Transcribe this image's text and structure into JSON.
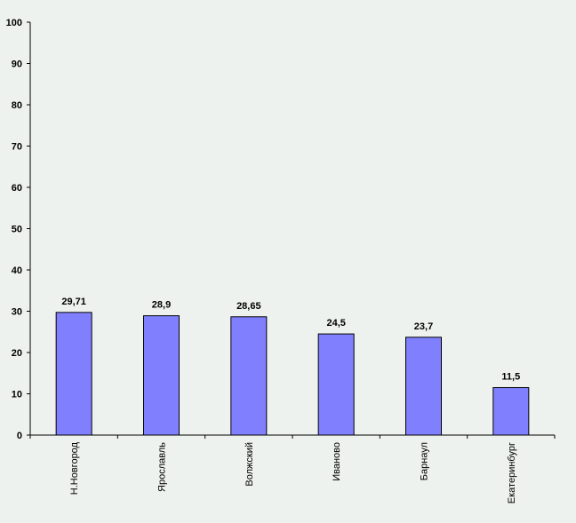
{
  "chart_data": {
    "type": "bar",
    "title": "",
    "xlabel": "",
    "ylabel": "",
    "categories": [
      "Н.Новгород",
      "Ярославль",
      "Волжский",
      "Иваново",
      "Барнаул",
      "Екатеринбург"
    ],
    "values": [
      29.71,
      28.9,
      28.65,
      24.5,
      23.7,
      11.5
    ],
    "data_labels": [
      "29,71",
      "28,9",
      "28,65",
      "24,5",
      "23,7",
      "11,5"
    ],
    "ylim": [
      0,
      100
    ],
    "y_ticks": [
      0,
      10,
      20,
      30,
      40,
      50,
      60,
      70,
      80,
      90,
      100
    ],
    "grid": false,
    "legend": "none",
    "colors": {
      "bar_fill": "#8080ff",
      "bar_stroke": "#000000",
      "axis": "#000000",
      "background": "#eef2ee"
    }
  }
}
